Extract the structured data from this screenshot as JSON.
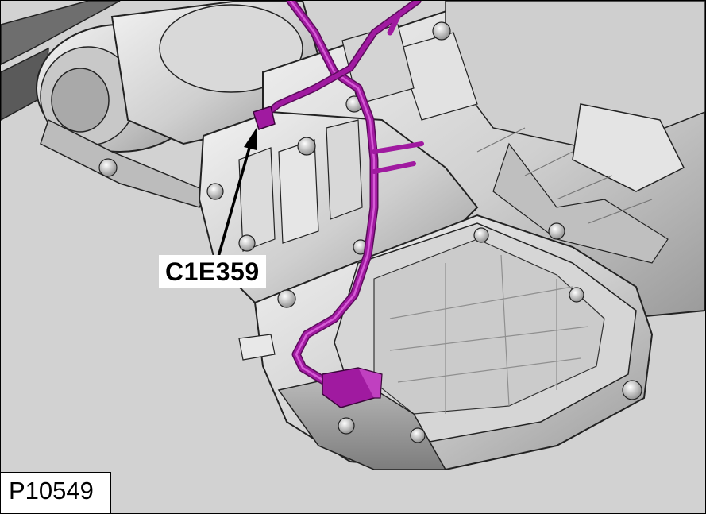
{
  "figure": {
    "figure_id": "P10549",
    "callouts": [
      {
        "label": "C1E359"
      }
    ]
  },
  "colors": {
    "background": "#d2d2d2",
    "metal_light": "#e6e6e6",
    "metal_mid": "#b8b8b8",
    "metal_dark": "#8e8e8e",
    "harness": "#a01aa0",
    "harness_highlight": "#d65cd6",
    "outline": "#222222"
  }
}
